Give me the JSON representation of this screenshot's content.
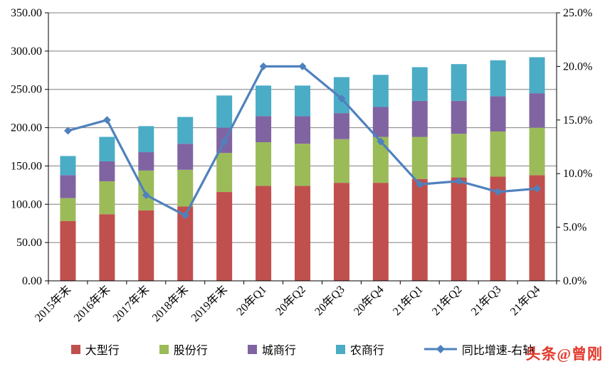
{
  "watermark": {
    "text": "头条@曾刚",
    "color": "#e23a2e"
  },
  "chart_data": {
    "type": "bar",
    "subtype": "stacked-bars-with-line-overlay",
    "title": "",
    "categories": [
      "2015年末",
      "2016年末",
      "2017年末",
      "2018年末",
      "2019年末",
      "20年Q1",
      "20年Q2",
      "20年Q3",
      "20年Q4",
      "21年Q1",
      "21年Q2",
      "21年Q3",
      "21年Q4"
    ],
    "series": [
      {
        "name": "大型行",
        "color": "#C0504D",
        "values": [
          78,
          87,
          92,
          97,
          116,
          124,
          124,
          128,
          128,
          133,
          135,
          136,
          138
        ]
      },
      {
        "name": "股份行",
        "color": "#9BBB59",
        "values": [
          30,
          43,
          52,
          48,
          51,
          57,
          55,
          57,
          60,
          55,
          57,
          59,
          62
        ]
      },
      {
        "name": "城商行",
        "color": "#8064A2",
        "values": [
          30,
          26,
          24,
          34,
          33,
          34,
          36,
          34,
          39,
          47,
          43,
          46,
          45
        ]
      },
      {
        "name": "农商行",
        "color": "#4BACC6",
        "values": [
          25,
          32,
          34,
          35,
          42,
          40,
          40,
          47,
          42,
          44,
          48,
          47,
          47
        ]
      }
    ],
    "bar_totals": [
      163,
      188,
      202,
      214,
      242,
      255,
      255,
      266,
      269,
      279,
      283,
      288,
      292
    ],
    "line": {
      "name": "同比增速-右轴",
      "color": "#4F81BD",
      "axis": "right",
      "values": [
        14.0,
        15.0,
        8.0,
        6.1,
        13.0,
        20.0,
        20.0,
        17.0,
        13.0,
        9.0,
        9.3,
        8.3,
        8.6
      ]
    },
    "left_axis": {
      "min": 0,
      "max": 350,
      "step": 50,
      "tick_labels": [
        "0.00",
        "50.00",
        "100.00",
        "150.00",
        "200.00",
        "250.00",
        "300.00",
        "350.00"
      ]
    },
    "right_axis": {
      "min": 0,
      "max": 25,
      "step": 5,
      "tick_labels": [
        "0.0%",
        "5.0%",
        "10.0%",
        "15.0%",
        "20.0%",
        "25.0%"
      ]
    },
    "grid": true,
    "grid_color": "#7f7f7f",
    "legend_position": "bottom"
  }
}
